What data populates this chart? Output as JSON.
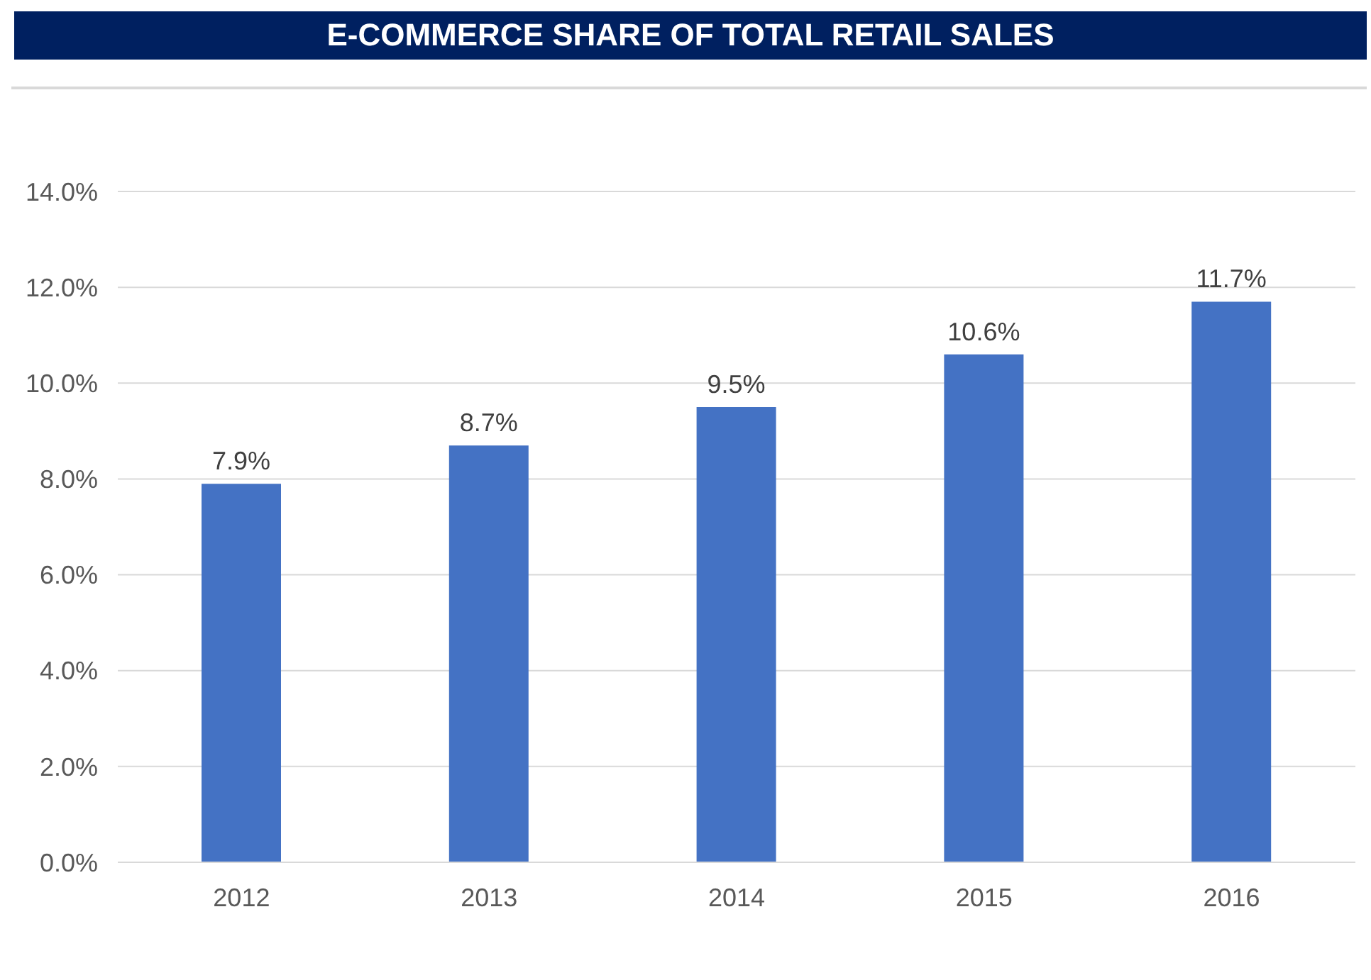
{
  "chart_data": {
    "type": "bar",
    "title": "E-COMMERCE SHARE OF TOTAL RETAIL SALES",
    "categories": [
      "2012",
      "2013",
      "2014",
      "2015",
      "2016"
    ],
    "values": [
      7.9,
      8.7,
      9.5,
      10.6,
      11.7
    ],
    "value_labels": [
      "7.9%",
      "8.7%",
      "9.5%",
      "10.6%",
      "11.7%"
    ],
    "color": "#4472c4",
    "ylim": [
      0,
      14
    ],
    "yticks": [
      {
        "value": 0,
        "label": "0.0%"
      },
      {
        "value": 2,
        "label": "2.0%"
      },
      {
        "value": 4,
        "label": "4.0%"
      },
      {
        "value": 6,
        "label": "6.0%"
      },
      {
        "value": 8,
        "label": "8.0%"
      },
      {
        "value": 10,
        "label": "10.0%"
      },
      {
        "value": 12,
        "label": "12.0%"
      },
      {
        "value": 14,
        "label": "14.0%"
      }
    ],
    "grid": "y",
    "legend": false
  }
}
